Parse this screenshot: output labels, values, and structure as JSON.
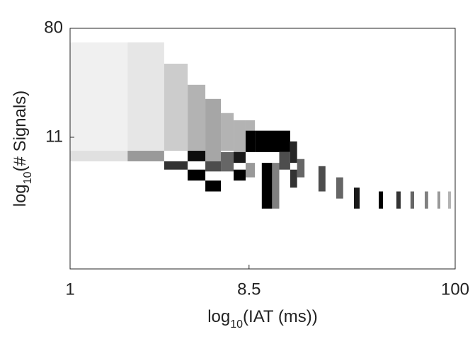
{
  "chart_data": {
    "type": "heatmap",
    "x_label": {
      "prefix": "log",
      "subscript": "10",
      "suffix": "(IAT (ms))"
    },
    "y_label": {
      "prefix": "log",
      "subscript": "10",
      "suffix": "(# Signals)"
    },
    "x_log": true,
    "y_log": true,
    "xlim": [
      1,
      100
    ],
    "ylim": [
      1,
      80
    ],
    "xticks": [
      1,
      8.5,
      100
    ],
    "yticks": [
      11,
      80
    ],
    "color": "#000000",
    "cells": [
      [
        1,
        1.99,
        8.6,
        61.9,
        0.06
      ],
      [
        1.99,
        3.08,
        8.6,
        61.9,
        0.1
      ],
      [
        1,
        1.99,
        7.1,
        8.6,
        0.12
      ],
      [
        1.99,
        3.08,
        7.1,
        8.6,
        0.4
      ],
      [
        3.08,
        4.08,
        8.6,
        42,
        0.2
      ],
      [
        4.08,
        5.04,
        8.6,
        28.6,
        0.3
      ],
      [
        5.04,
        6.07,
        7.1,
        22.1,
        0.35
      ],
      [
        6.07,
        7.07,
        8.6,
        17.1,
        0.3
      ],
      [
        7.07,
        8.16,
        8.4,
        15,
        0.3
      ],
      [
        8.16,
        9.12,
        12.4,
        15,
        0.3
      ],
      [
        3.08,
        4.08,
        6.1,
        7.1,
        0.8
      ],
      [
        4.08,
        5.04,
        7.1,
        8.6,
        0.95
      ],
      [
        4.08,
        5.04,
        5.0,
        6.1,
        1
      ],
      [
        5.04,
        6.07,
        5.9,
        7.1,
        0.7
      ],
      [
        5.04,
        6.07,
        4.1,
        5.0,
        1
      ],
      [
        6.07,
        7.07,
        5.9,
        8.4,
        0.6
      ],
      [
        7.07,
        8.16,
        5.0,
        6.1,
        1
      ],
      [
        7.07,
        8.16,
        6.9,
        8.4,
        0.9
      ],
      [
        8.16,
        9.12,
        8.4,
        12.4,
        1
      ],
      [
        9.12,
        13.9,
        8.4,
        12.4,
        1
      ],
      [
        9.9,
        11.2,
        3.0,
        6.9,
        1
      ],
      [
        11.2,
        12.2,
        3.0,
        6.9,
        0.5
      ],
      [
        8.16,
        9.12,
        5.3,
        6.9,
        0.4
      ],
      [
        12.2,
        13.9,
        6.1,
        8.4,
        0.7
      ],
      [
        13.9,
        15.1,
        6.9,
        10.2,
        0.85
      ],
      [
        15.1,
        16.5,
        5.3,
        7.4,
        0.6
      ],
      [
        13.9,
        15.1,
        4.4,
        6.1,
        0.8
      ],
      [
        19.5,
        21.2,
        4.1,
        6.5,
        0.7
      ],
      [
        24.1,
        26.2,
        3.6,
        5.3,
        0.6
      ],
      [
        29.8,
        31.9,
        3.0,
        4.4,
        0.9
      ],
      [
        40.1,
        42.2,
        3.0,
        4.1,
        1
      ],
      [
        49.5,
        52.1,
        3.0,
        4.1,
        0.8
      ],
      [
        58.6,
        61.2,
        3.0,
        4.1,
        0.6
      ],
      [
        69.5,
        72.4,
        3.0,
        4.1,
        0.5
      ],
      [
        80.9,
        83.7,
        3.0,
        4.1,
        0.4
      ],
      [
        91.9,
        95.1,
        3.0,
        4.1,
        0.3
      ]
    ]
  }
}
